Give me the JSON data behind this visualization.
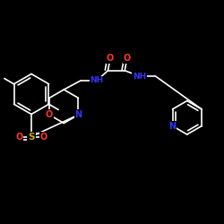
{
  "background_color": "#000000",
  "bond_color": "#ffffff",
  "atom_colors": {
    "O": "#ff3333",
    "N": "#3333ff",
    "S": "#ccaa00",
    "C": "#ffffff"
  },
  "figsize": [
    2.5,
    2.5
  ],
  "dpi": 100,
  "lw": 1.2,
  "font_size": 7.0
}
